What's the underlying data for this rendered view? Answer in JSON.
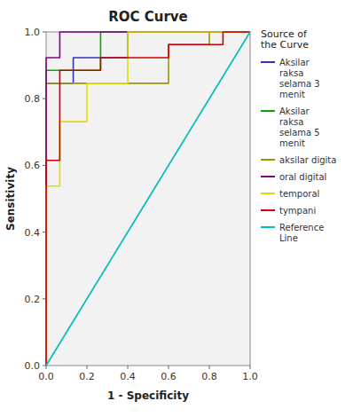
{
  "chart_data": {
    "type": "line",
    "title": "ROC Curve",
    "xlabel": "1 - Specificity",
    "ylabel": "Sensitivity",
    "xlim": [
      0.0,
      1.0
    ],
    "ylim": [
      0.0,
      1.0
    ],
    "xticks": [
      {
        "value": 0.0,
        "label": "0.0"
      },
      0.2,
      0.4,
      0.6,
      0.8,
      {
        "value": 1.0,
        "label": "1.0"
      }
    ],
    "yticks": [
      {
        "value": 0.0,
        "label": "0.0"
      },
      0.2,
      0.4,
      0.6,
      0.8,
      {
        "value": 1.0,
        "label": "1.0"
      }
    ],
    "grid": false,
    "legend": "right",
    "legend_title": "Source of\nthe Curve",
    "series": [
      {
        "name": "Aksilar\nraksa\nselama 3\nmenit",
        "color": "#3333bb",
        "x": [
          0.0,
          0.0,
          0.133,
          0.133,
          0.4,
          0.4,
          1.0
        ],
        "values": [
          0.0,
          0.846,
          0.846,
          0.923,
          0.923,
          1.0,
          1.0
        ]
      },
      {
        "name": "Aksilar\nraksa\nselama 5\nmenit",
        "color": "#00aa00",
        "x": [
          0.0,
          0.0,
          0.267,
          0.267,
          1.0
        ],
        "values": [
          0.0,
          0.885,
          0.885,
          1.0,
          1.0
        ]
      },
      {
        "name": "aksilar digita",
        "color": "#999900",
        "x": [
          0.0,
          0.0,
          0.6,
          0.6,
          0.8,
          0.8,
          1.0
        ],
        "values": [
          0.0,
          0.846,
          0.846,
          0.962,
          0.962,
          1.0,
          1.0
        ]
      },
      {
        "name": "oral digital",
        "color": "#880088",
        "x": [
          0.0,
          0.0,
          0.067,
          0.067,
          1.0
        ],
        "values": [
          0.0,
          0.923,
          0.923,
          1.0,
          1.0
        ]
      },
      {
        "name": "temporal",
        "color": "#dddd00",
        "x": [
          0.0,
          0.0,
          0.067,
          0.067,
          0.2,
          0.2,
          0.4,
          0.4,
          1.0
        ],
        "values": [
          0.0,
          0.538,
          0.538,
          0.731,
          0.731,
          0.846,
          0.846,
          1.0,
          1.0
        ]
      },
      {
        "name": "tympani",
        "color": "#cc0000",
        "x": [
          0.0,
          0.0,
          0.067,
          0.067,
          0.267,
          0.267,
          0.6,
          0.6,
          0.867,
          0.867,
          1.0
        ],
        "values": [
          0.0,
          0.615,
          0.615,
          0.885,
          0.885,
          0.923,
          0.923,
          0.962,
          0.962,
          1.0,
          1.0
        ]
      },
      {
        "name": "Reference\nLine",
        "color": "#00bbbb",
        "x": [
          0.0,
          1.0
        ],
        "values": [
          0.0,
          1.0
        ]
      }
    ]
  }
}
